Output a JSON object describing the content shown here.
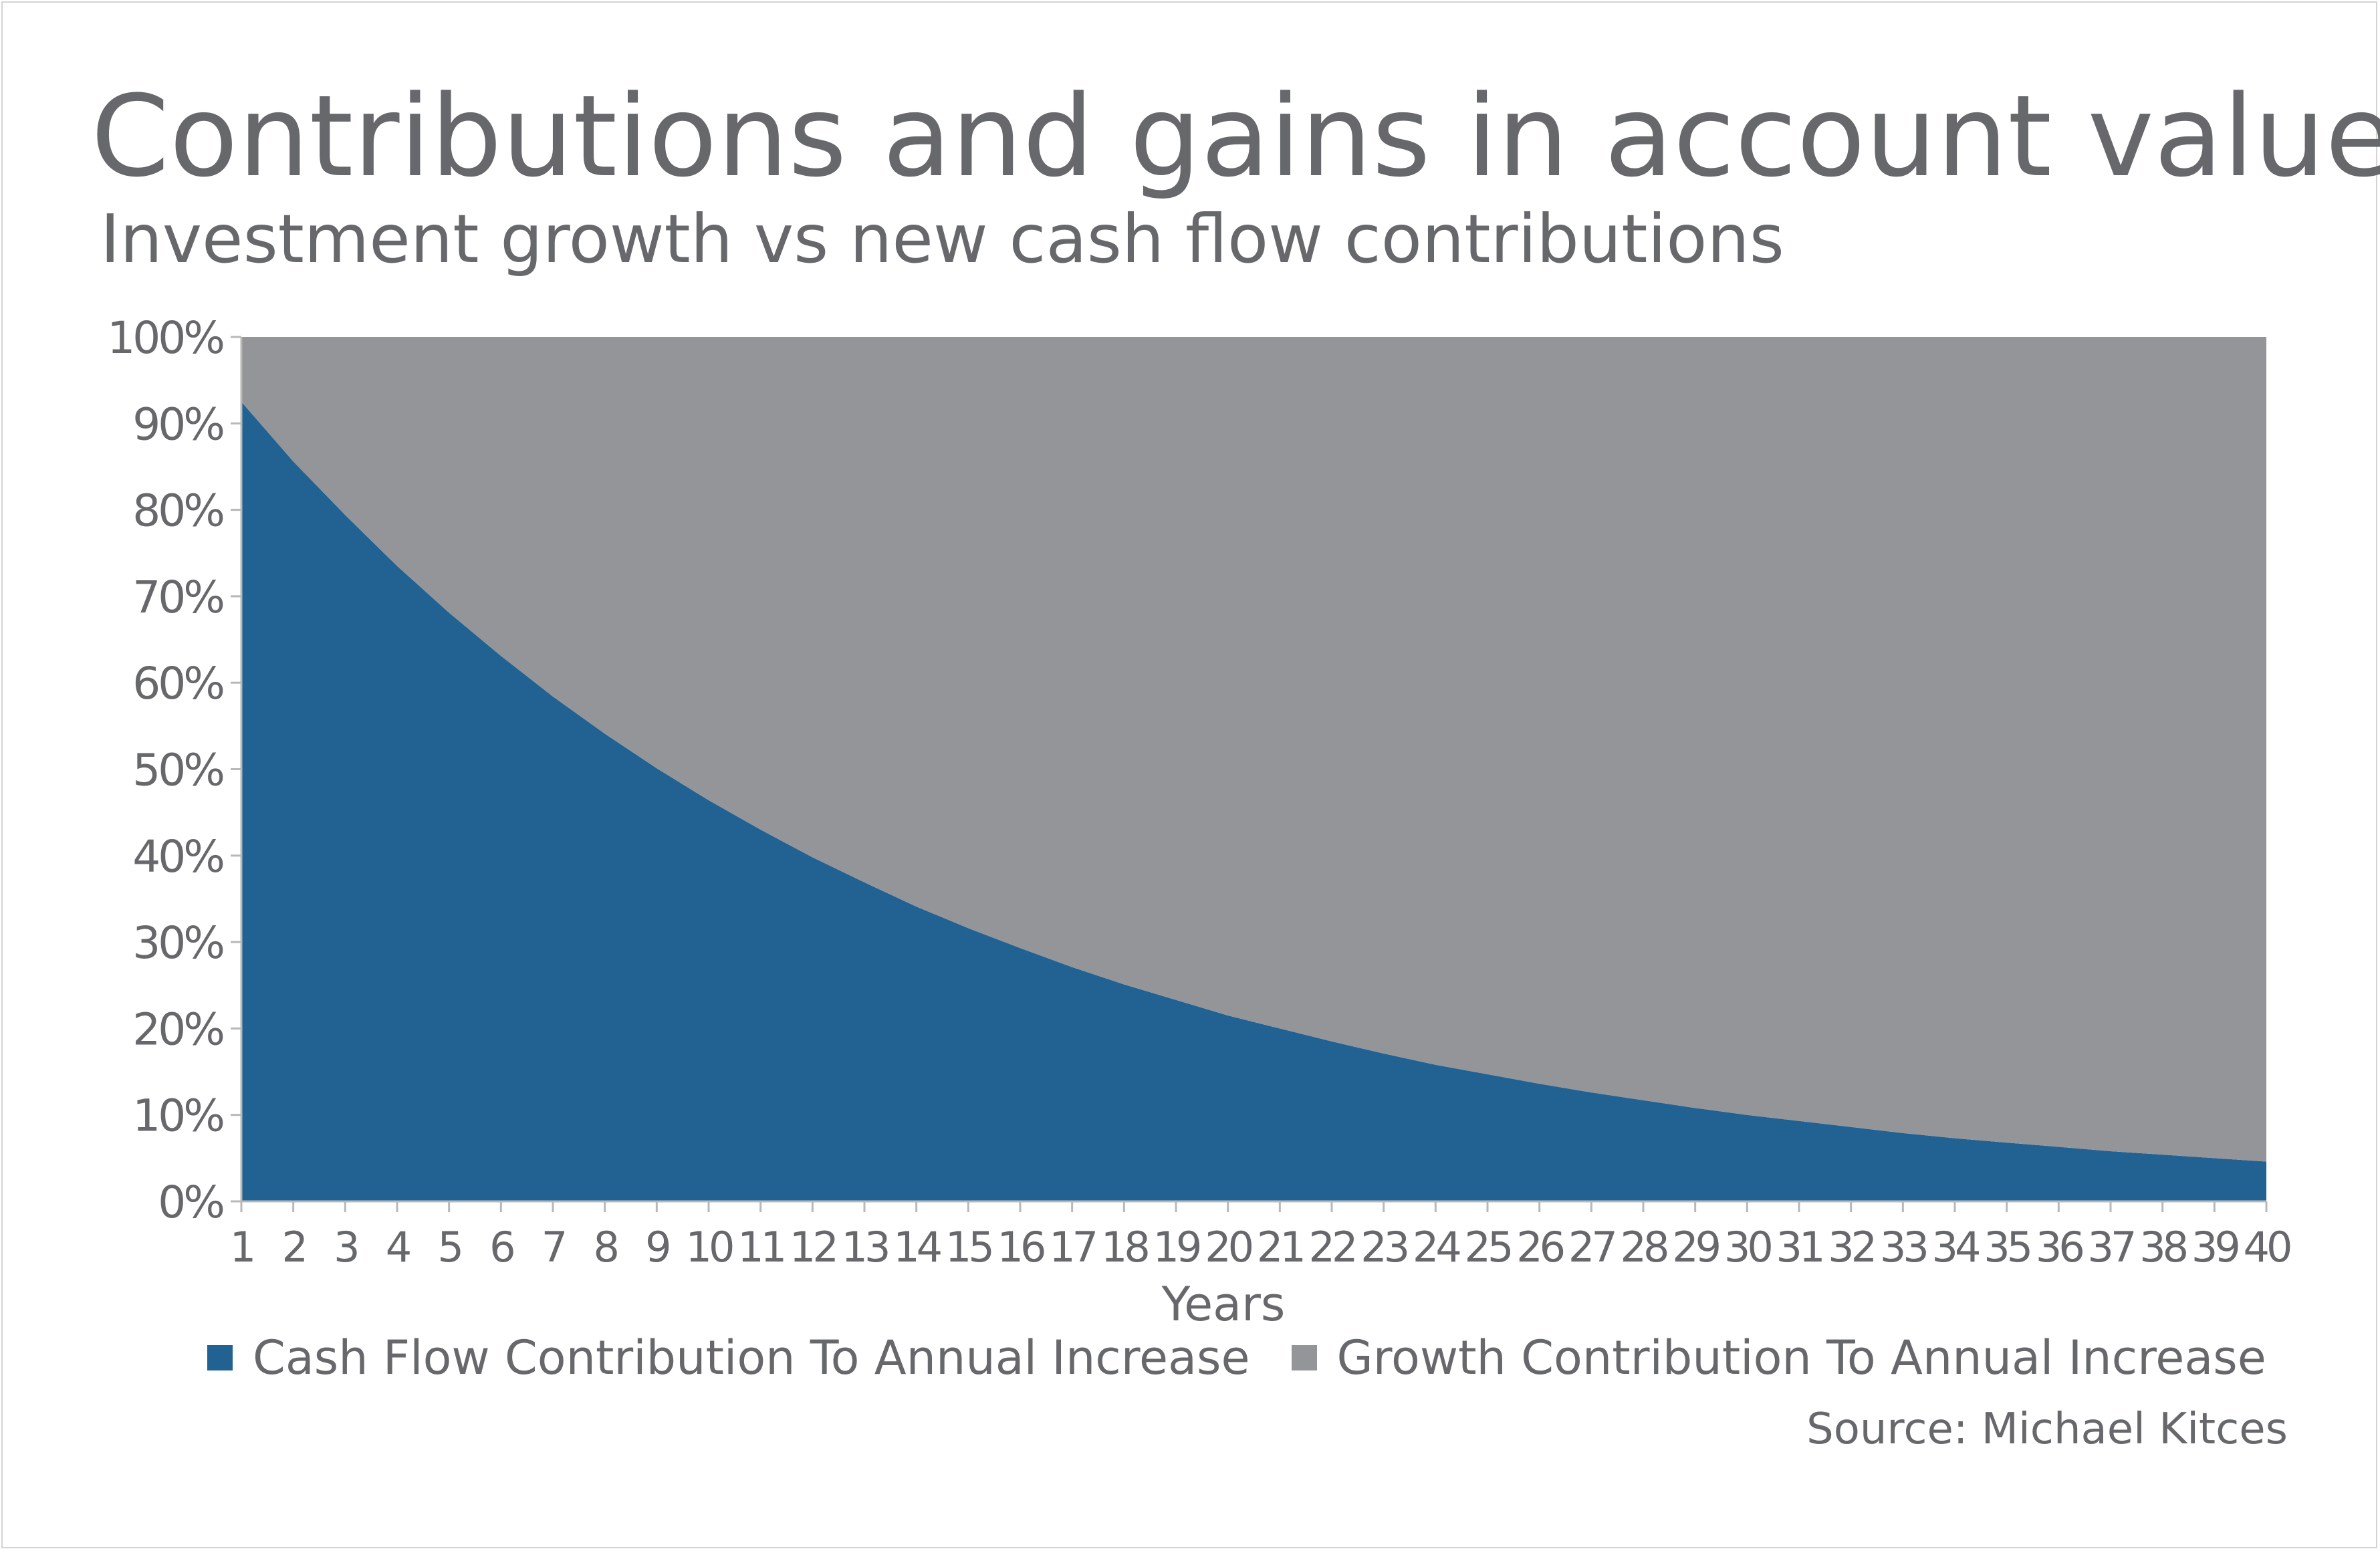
{
  "title": "Contributions and gains in account value",
  "subtitle": "Investment growth vs new cash flow contributions",
  "source": "Source: Michael Kitces",
  "colors": {
    "cash_flow": "#216293",
    "growth": "#949599",
    "text": "#67686c"
  },
  "chart_data": {
    "type": "area",
    "stacked": true,
    "normalized": true,
    "title": "Contributions and gains in account value",
    "subtitle": "Investment growth vs new cash flow contributions",
    "xlabel": "Years",
    "ylabel": "",
    "x": [
      1,
      2,
      3,
      4,
      5,
      6,
      7,
      8,
      9,
      10,
      11,
      12,
      13,
      14,
      15,
      16,
      17,
      18,
      19,
      20,
      21,
      22,
      23,
      24,
      25,
      26,
      27,
      28,
      29,
      30,
      31,
      32,
      33,
      34,
      35,
      36,
      37,
      38,
      39,
      40
    ],
    "ylim": [
      0,
      100
    ],
    "yticks": [
      "0%",
      "10%",
      "20%",
      "30%",
      "40%",
      "50%",
      "60%",
      "70%",
      "80%",
      "90%",
      "100%"
    ],
    "grid": false,
    "legend_position": "bottom",
    "series": [
      {
        "name": "Cash Flow Contribution To Annual Increase",
        "color": "#216293",
        "values": [
          92.5,
          85.6,
          79.4,
          73.5,
          68.1,
          63.1,
          58.4,
          54.1,
          50.1,
          46.4,
          43.0,
          39.8,
          36.9,
          34.1,
          31.6,
          29.3,
          27.1,
          25.1,
          23.3,
          21.5,
          20.0,
          18.5,
          17.1,
          15.8,
          14.7,
          13.6,
          12.6,
          11.7,
          10.8,
          10.0,
          9.3,
          8.6,
          7.9,
          7.3,
          6.8,
          6.3,
          5.8,
          5.4,
          5.0,
          4.6
        ]
      },
      {
        "name": "Growth Contribution To Annual Increase",
        "color": "#949599",
        "values": [
          7.5,
          14.4,
          20.6,
          26.5,
          31.9,
          36.9,
          41.6,
          45.9,
          49.9,
          53.6,
          57.0,
          60.2,
          63.1,
          65.9,
          68.4,
          70.7,
          72.9,
          74.9,
          76.7,
          78.5,
          80.0,
          81.5,
          82.9,
          84.2,
          85.3,
          86.4,
          87.4,
          88.3,
          89.2,
          90.0,
          90.7,
          91.4,
          92.1,
          92.7,
          93.2,
          93.7,
          94.2,
          94.6,
          95.0,
          95.4
        ]
      }
    ]
  }
}
